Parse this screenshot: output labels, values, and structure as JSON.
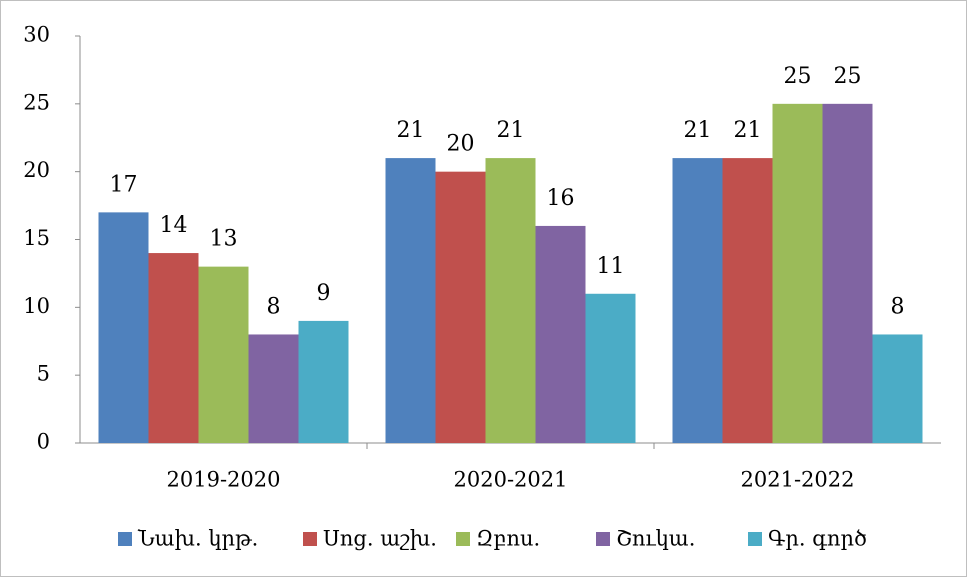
{
  "chart_data": {
    "type": "bar",
    "categories": [
      "2019-2020",
      "2020-2021",
      "2021-2022"
    ],
    "series": [
      {
        "name": "Նախ. կրթ.",
        "color": "#4f81bd",
        "values": [
          17,
          21,
          21
        ]
      },
      {
        "name": "Սոց. աշխ.",
        "color": "#c0504d",
        "values": [
          14,
          20,
          21
        ]
      },
      {
        "name": "Զբոս.",
        "color": "#9bbb59",
        "values": [
          13,
          21,
          25
        ]
      },
      {
        "name": "Շուկա.",
        "color": "#8064a2",
        "values": [
          8,
          16,
          25
        ]
      },
      {
        "name": "Գր. գործ",
        "color": "#4bacc6",
        "values": [
          9,
          11,
          8
        ]
      }
    ],
    "ylim": [
      0,
      30
    ],
    "yticks": [
      0,
      5,
      10,
      15,
      20,
      25,
      30
    ],
    "grid": false,
    "legend": "bottom"
  }
}
